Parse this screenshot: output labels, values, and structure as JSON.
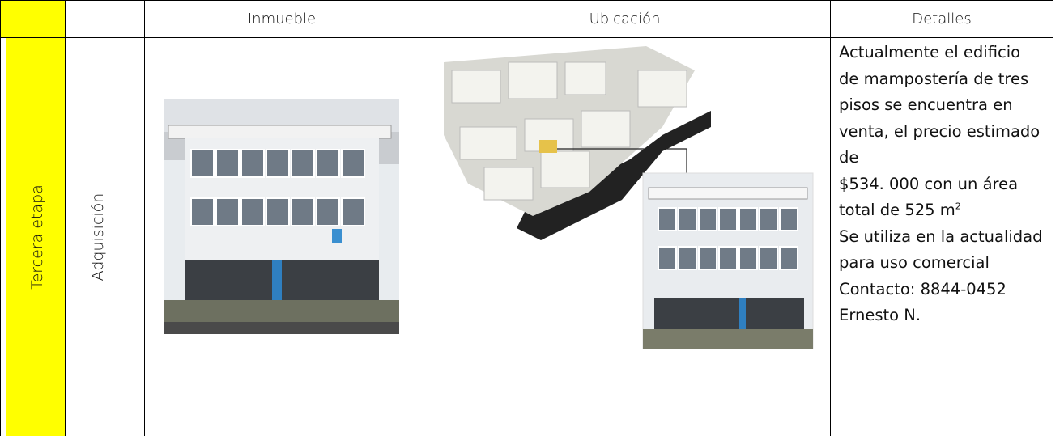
{
  "table": {
    "columns": [
      "Inmueble",
      "Ubicación",
      "Detalles"
    ],
    "row": {
      "stage": "Tercera etapa",
      "phase": "Adquisición",
      "details": [
        "Actualmente el edificio de mampostería de tres pisos se encuentra en venta, el precio estimado de",
        "$534. 000 con un área total de 525 m",
        "2",
        "Se utiliza en la actualidad para uso comercial",
        "Contacto: 8844-0452 Ernesto N."
      ]
    }
  }
}
